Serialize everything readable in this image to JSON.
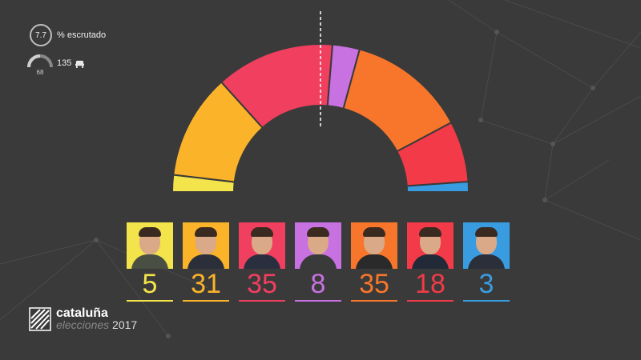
{
  "scrutiny": {
    "value": "7.7",
    "label": "% escrutado"
  },
  "seats_info": {
    "majority": "68",
    "total": "135"
  },
  "brand": {
    "name": "cataluña",
    "subtitle_faint": "elecciones",
    "subtitle_year": "2017"
  },
  "chart_data": {
    "type": "hemicycle",
    "total": 135,
    "majority": 68,
    "parties": [
      {
        "seats": 5,
        "color": "#f2e44a"
      },
      {
        "seats": 31,
        "color": "#fbb32a"
      },
      {
        "seats": 35,
        "color": "#f03f5f"
      },
      {
        "seats": 8,
        "color": "#c871e0"
      },
      {
        "seats": 35,
        "color": "#f7762b"
      },
      {
        "seats": 18,
        "color": "#f23a48"
      },
      {
        "seats": 3,
        "color": "#3a9ce0"
      }
    ]
  }
}
